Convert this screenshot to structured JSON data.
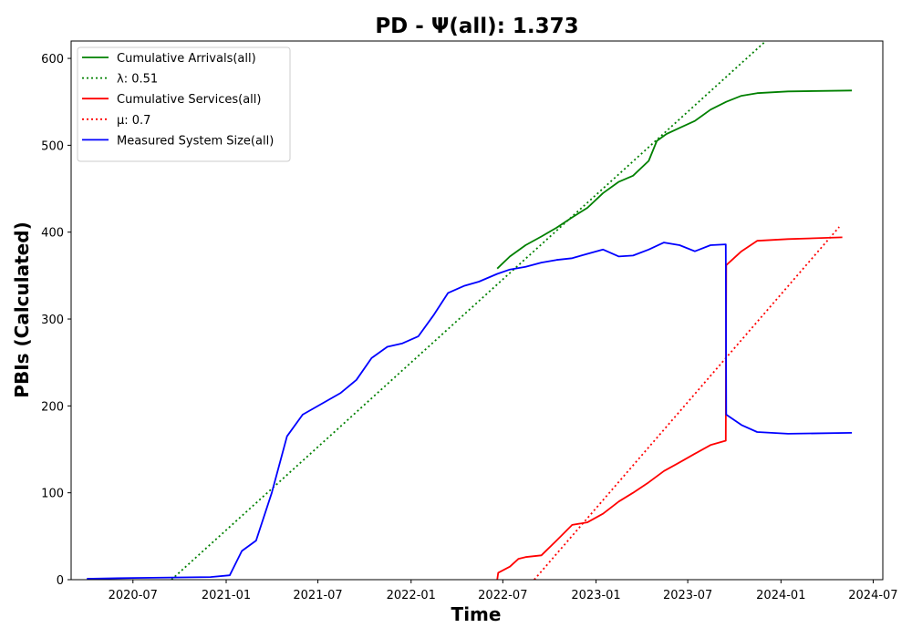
{
  "chart_data": {
    "type": "line",
    "title": "PD -  Ψ(all): 1.373",
    "xlabel": "Time",
    "ylabel": "PBIs (Calculated)",
    "xlim": [
      "2020-03-01",
      "2024-07-20"
    ],
    "ylim": [
      0,
      620
    ],
    "x_ticks": [
      "2020-07",
      "2021-01",
      "2021-07",
      "2022-01",
      "2022-07",
      "2023-01",
      "2023-07",
      "2024-01",
      "2024-07"
    ],
    "y_ticks": [
      0,
      100,
      200,
      300,
      400,
      500,
      600
    ],
    "grid": false,
    "legend_position": "top-left",
    "series": [
      {
        "name": "Cumulative Arrivals(all)",
        "color": "#008000",
        "style": "solid",
        "x": [
          "2022-06-20",
          "2022-07-15",
          "2022-08-15",
          "2022-09-15",
          "2022-10-15",
          "2022-11-15",
          "2022-12-15",
          "2023-01-15",
          "2023-02-15",
          "2023-03-15",
          "2023-04-15",
          "2023-05-01",
          "2023-05-20",
          "2023-06-15",
          "2023-07-15",
          "2023-08-15",
          "2023-09-15",
          "2023-10-15",
          "2023-11-15",
          "2024-01-15",
          "2024-05-20"
        ],
        "y": [
          358,
          372,
          385,
          395,
          405,
          417,
          428,
          445,
          458,
          465,
          482,
          505,
          513,
          520,
          528,
          541,
          550,
          557,
          560,
          562,
          563
        ]
      },
      {
        "name": "λ: 0.51",
        "color": "#008000",
        "style": "dotted",
        "x": [
          "2020-09-15",
          "2023-12-02"
        ],
        "y": [
          0,
          620
        ]
      },
      {
        "name": "Cumulative Services(all)",
        "color": "#ff0000",
        "style": "solid",
        "x": [
          "2022-06-20",
          "2022-06-22",
          "2022-07-15",
          "2022-08-01",
          "2022-08-15",
          "2022-09-15",
          "2022-10-15",
          "2022-11-15",
          "2022-12-15",
          "2023-01-15",
          "2023-02-15",
          "2023-03-15",
          "2023-04-15",
          "2023-05-15",
          "2023-06-15",
          "2023-07-15",
          "2023-08-15",
          "2023-09-14",
          "2023-09-15",
          "2023-10-15",
          "2023-11-15",
          "2024-01-15",
          "2024-05-01"
        ],
        "y": [
          0,
          8,
          15,
          24,
          26,
          28,
          45,
          63,
          66,
          76,
          90,
          100,
          112,
          125,
          135,
          145,
          155,
          160,
          362,
          378,
          390,
          392,
          394
        ]
      },
      {
        "name": "μ: 0.7",
        "color": "#ff0000",
        "style": "dotted",
        "x": [
          "2022-09-01",
          "2024-04-25"
        ],
        "y": [
          0,
          406
        ]
      },
      {
        "name": "Measured System Size(all)",
        "color": "#0000ff",
        "style": "solid",
        "x": [
          "2020-04-01",
          "2020-07-01",
          "2020-12-01",
          "2021-01-08",
          "2021-02-01",
          "2021-03-01",
          "2021-04-01",
          "2021-05-01",
          "2021-06-01",
          "2021-07-01",
          "2021-08-15",
          "2021-09-15",
          "2021-10-15",
          "2021-11-15",
          "2021-12-15",
          "2022-01-15",
          "2022-02-15",
          "2022-03-15",
          "2022-04-15",
          "2022-05-15",
          "2022-06-20",
          "2022-07-15",
          "2022-08-15",
          "2022-09-15",
          "2022-10-15",
          "2022-11-15",
          "2022-12-15",
          "2023-01-15",
          "2023-02-15",
          "2023-03-15",
          "2023-04-15",
          "2023-05-15",
          "2023-06-15",
          "2023-07-15",
          "2023-08-15",
          "2023-09-14",
          "2023-09-15",
          "2023-10-15",
          "2023-11-15",
          "2024-01-15",
          "2024-05-20"
        ],
        "y": [
          1,
          2,
          3,
          5,
          33,
          45,
          100,
          165,
          190,
          200,
          215,
          230,
          255,
          268,
          272,
          280,
          305,
          330,
          338,
          343,
          352,
          357,
          360,
          365,
          368,
          370,
          375,
          380,
          372,
          373,
          380,
          388,
          385,
          378,
          385,
          386,
          190,
          178,
          170,
          168,
          169
        ]
      }
    ]
  }
}
